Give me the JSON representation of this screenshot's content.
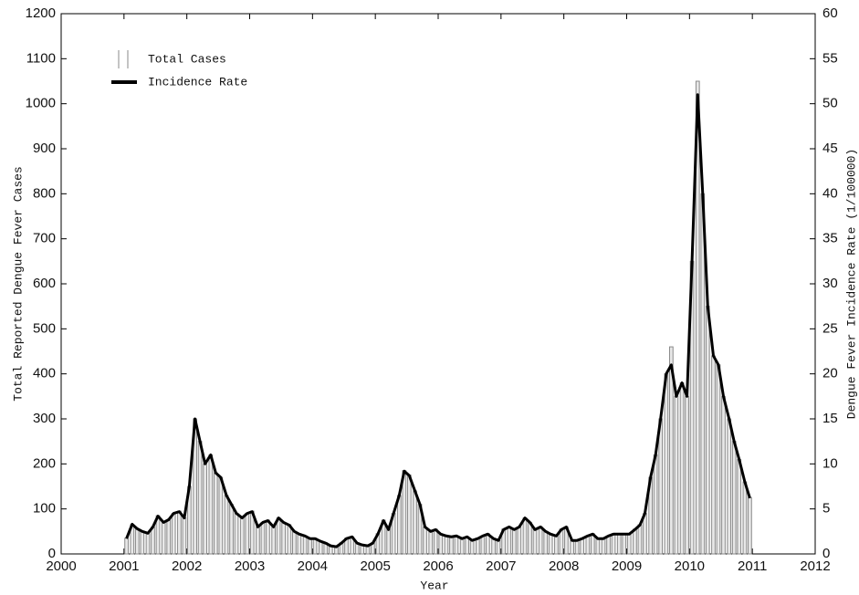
{
  "chart_data": {
    "type": "bar-line",
    "xlabel": "Year",
    "ylabel": "Total Reported Dengue Fever Cases",
    "y2label": "Dengue Fever Incidence Rate (1/100000)",
    "x": [
      2001.04,
      2001.13,
      2001.21,
      2001.29,
      2001.38,
      2001.46,
      2001.54,
      2001.63,
      2001.71,
      2001.79,
      2001.88,
      2001.96,
      2002.04,
      2002.13,
      2002.21,
      2002.29,
      2002.38,
      2002.46,
      2002.54,
      2002.63,
      2002.71,
      2002.79,
      2002.88,
      2002.96,
      2003.04,
      2003.13,
      2003.21,
      2003.29,
      2003.38,
      2003.46,
      2003.54,
      2003.63,
      2003.71,
      2003.79,
      2003.88,
      2003.96,
      2004.04,
      2004.13,
      2004.21,
      2004.29,
      2004.38,
      2004.46,
      2004.54,
      2004.63,
      2004.71,
      2004.79,
      2004.88,
      2004.96,
      2005.04,
      2005.13,
      2005.21,
      2005.29,
      2005.38,
      2005.46,
      2005.54,
      2005.63,
      2005.71,
      2005.79,
      2005.88,
      2005.96,
      2006.04,
      2006.13,
      2006.21,
      2006.29,
      2006.38,
      2006.46,
      2006.54,
      2006.63,
      2006.71,
      2006.79,
      2006.88,
      2006.96,
      2007.04,
      2007.13,
      2007.21,
      2007.29,
      2007.38,
      2007.46,
      2007.54,
      2007.63,
      2007.71,
      2007.79,
      2007.88,
      2007.96,
      2008.04,
      2008.13,
      2008.21,
      2008.29,
      2008.38,
      2008.46,
      2008.54,
      2008.63,
      2008.71,
      2008.79,
      2008.88,
      2008.96,
      2009.04,
      2009.13,
      2009.21,
      2009.29,
      2009.38,
      2009.46,
      2009.54,
      2009.63,
      2009.71,
      2009.79,
      2009.88,
      2009.96,
      2010.04,
      2010.13,
      2010.21,
      2010.29,
      2010.38,
      2010.46,
      2010.54,
      2010.63,
      2010.71,
      2010.79,
      2010.88,
      2010.96
    ],
    "series": [
      {
        "name": "Total Cases",
        "color": "#8a8a8a",
        "values": [
          35,
          65,
          55,
          50,
          45,
          60,
          85,
          70,
          75,
          90,
          95,
          80,
          150,
          300,
          250,
          200,
          220,
          180,
          170,
          130,
          110,
          90,
          80,
          90,
          95,
          60,
          70,
          75,
          60,
          80,
          70,
          65,
          50,
          45,
          40,
          35,
          35,
          28,
          25,
          18,
          15,
          25,
          35,
          38,
          25,
          20,
          18,
          25,
          45,
          75,
          55,
          90,
          130,
          185,
          175,
          140,
          110,
          60,
          50,
          55,
          45,
          40,
          38,
          40,
          35,
          38,
          30,
          35,
          40,
          45,
          35,
          30,
          55,
          60,
          55,
          60,
          80,
          70,
          55,
          60,
          50,
          45,
          40,
          55,
          60,
          30,
          30,
          35,
          40,
          45,
          35,
          35,
          40,
          45,
          45,
          45,
          45,
          55,
          65,
          90,
          170,
          220,
          300,
          400,
          460,
          350,
          380,
          350,
          650,
          1050,
          800,
          550,
          440,
          420,
          350,
          300,
          250,
          210,
          160,
          125
        ]
      },
      {
        "name": "Incidence Rate",
        "color": "#000000",
        "axis": "y2",
        "values": [
          1.7,
          3.3,
          2.8,
          2.5,
          2.3,
          3.0,
          4.2,
          3.5,
          3.8,
          4.5,
          4.7,
          4.0,
          7.5,
          15,
          12.5,
          10,
          11,
          9,
          8.5,
          6.5,
          5.5,
          4.5,
          4,
          4.5,
          4.7,
          3,
          3.5,
          3.7,
          3,
          4,
          3.5,
          3.2,
          2.5,
          2.2,
          2,
          1.7,
          1.7,
          1.4,
          1.2,
          0.9,
          0.8,
          1.2,
          1.7,
          1.9,
          1.2,
          1,
          0.9,
          1.2,
          2.2,
          3.7,
          2.7,
          4.5,
          6.5,
          9.2,
          8.7,
          7,
          5.5,
          3,
          2.5,
          2.7,
          2.2,
          2,
          1.9,
          2,
          1.7,
          1.9,
          1.5,
          1.7,
          2,
          2.2,
          1.7,
          1.5,
          2.7,
          3,
          2.7,
          3,
          4,
          3.5,
          2.7,
          3,
          2.5,
          2.2,
          2,
          2.7,
          3,
          1.5,
          1.5,
          1.7,
          2,
          2.2,
          1.7,
          1.7,
          2,
          2.2,
          2.2,
          2.2,
          2.2,
          2.7,
          3.2,
          4.5,
          8.5,
          11,
          15,
          20,
          21,
          17.5,
          19,
          17.5,
          32.5,
          51,
          40,
          27.5,
          22,
          21,
          17.5,
          15,
          12.5,
          10.5,
          8,
          6.2
        ]
      }
    ],
    "xlim": [
      2000,
      2012
    ],
    "xticks": [
      2000,
      2001,
      2002,
      2003,
      2004,
      2005,
      2006,
      2007,
      2008,
      2009,
      2010,
      2011,
      2012
    ],
    "ylim": [
      0,
      1200
    ],
    "yticks": [
      0,
      100,
      200,
      300,
      400,
      500,
      600,
      700,
      800,
      900,
      1000,
      1100,
      1200
    ],
    "y2lim": [
      0,
      60
    ],
    "y2ticks": [
      0,
      5,
      10,
      15,
      20,
      25,
      30,
      35,
      40,
      45,
      50,
      55,
      60
    ],
    "legend": "upper left"
  }
}
